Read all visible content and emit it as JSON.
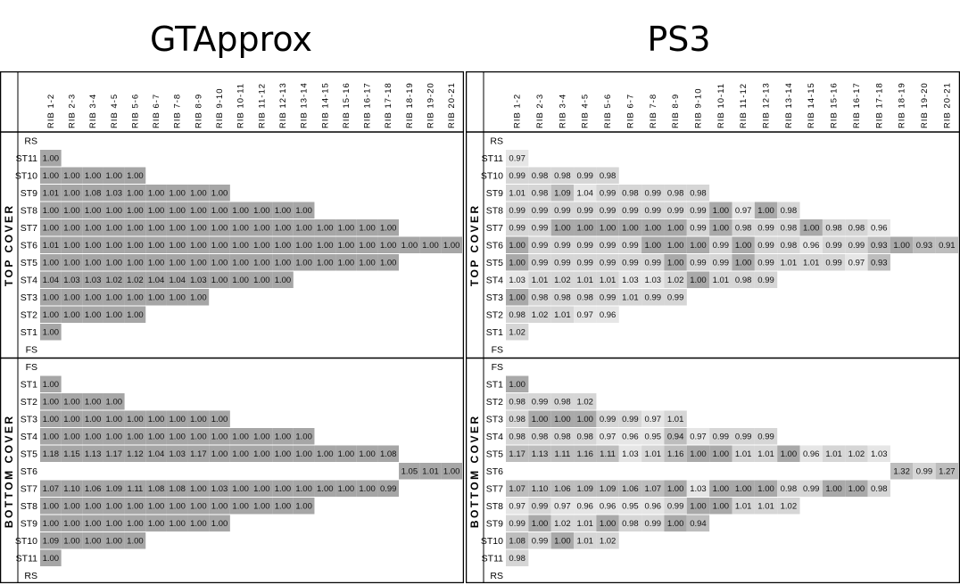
{
  "chart_data": [
    {
      "type": "heatmap",
      "title": "GTApprox",
      "x_labels": [
        "RIB 1-2",
        "RIB 2-3",
        "RIB 3-4",
        "RIB 4-5",
        "RIB 5-6",
        "RIB 6-7",
        "RIB 7-8",
        "RIB 8-9",
        "RIB 9-10",
        "RIB 10-11",
        "RIB 11-12",
        "RIB 12-13",
        "RIB 13-14",
        "RIB 14-15",
        "RIB 15-16",
        "RIB 16-17",
        "RIB 17-18",
        "RIB 18-19",
        "RIB 19-20",
        "RIB 20-21"
      ],
      "groups": [
        {
          "label": "TOP COVER",
          "rows": [
            {
              "label": "RS",
              "values": []
            },
            {
              "label": "ST11",
              "values": [
                "1.00"
              ]
            },
            {
              "label": "ST10",
              "values": [
                "1.00",
                "1.00",
                "1.00",
                "1.00",
                "1.00"
              ]
            },
            {
              "label": "ST9",
              "values": [
                "1.01",
                "1.00",
                "1.08",
                "1.03",
                "1.00",
                "1.00",
                "1.00",
                "1.00",
                "1.00"
              ]
            },
            {
              "label": "ST8",
              "values": [
                "1.00",
                "1.00",
                "1.00",
                "1.00",
                "1.00",
                "1.00",
                "1.00",
                "1.00",
                "1.00",
                "1.00",
                "1.00",
                "1.00",
                "1.00"
              ]
            },
            {
              "label": "ST7",
              "values": [
                "1.00",
                "1.00",
                "1.00",
                "1.00",
                "1.00",
                "1.00",
                "1.00",
                "1.00",
                "1.00",
                "1.00",
                "1.00",
                "1.00",
                "1.00",
                "1.00",
                "1.00",
                "1.00",
                "1.00"
              ]
            },
            {
              "label": "ST6",
              "values": [
                "1.01",
                "1.00",
                "1.00",
                "1.00",
                "1.00",
                "1.00",
                "1.00",
                "1.00",
                "1.00",
                "1.00",
                "1.00",
                "1.00",
                "1.00",
                "1.00",
                "1.00",
                "1.00",
                "1.00",
                "1.00",
                "1.00",
                "1.00"
              ]
            },
            {
              "label": "ST5",
              "values": [
                "1.00",
                "1.00",
                "1.00",
                "1.00",
                "1.00",
                "1.00",
                "1.00",
                "1.00",
                "1.00",
                "1.00",
                "1.00",
                "1.00",
                "1.00",
                "1.00",
                "1.00",
                "1.00",
                "1.00"
              ]
            },
            {
              "label": "ST4",
              "values": [
                "1.04",
                "1.03",
                "1.03",
                "1.02",
                "1.02",
                "1.04",
                "1.04",
                "1.03",
                "1.00",
                "1.00",
                "1.00",
                "1.00"
              ]
            },
            {
              "label": "ST3",
              "values": [
                "1.00",
                "1.00",
                "1.00",
                "1.00",
                "1.00",
                "1.00",
                "1.00",
                "1.00"
              ]
            },
            {
              "label": "ST2",
              "values": [
                "1.00",
                "1.00",
                "1.00",
                "1.00",
                "1.00"
              ]
            },
            {
              "label": "ST1",
              "values": [
                "1.00"
              ]
            },
            {
              "label": "FS",
              "values": []
            }
          ]
        },
        {
          "label": "BOTTOM COVER",
          "rows": [
            {
              "label": "FS",
              "values": []
            },
            {
              "label": "ST1",
              "values": [
                "1.00"
              ]
            },
            {
              "label": "ST2",
              "values": [
                "1.00",
                "1.00",
                "1.00",
                "1.00"
              ]
            },
            {
              "label": "ST3",
              "values": [
                "1.00",
                "1.00",
                "1.00",
                "1.00",
                "1.00",
                "1.00",
                "1.00",
                "1.00",
                "1.00"
              ]
            },
            {
              "label": "ST4",
              "values": [
                "1.00",
                "1.00",
                "1.00",
                "1.00",
                "1.00",
                "1.00",
                "1.00",
                "1.00",
                "1.00",
                "1.00",
                "1.00",
                "1.00",
                "1.00"
              ]
            },
            {
              "label": "ST5",
              "values": [
                "1.18",
                "1.15",
                "1.13",
                "1.17",
                "1.12",
                "1.04",
                "1.03",
                "1.17",
                "1.00",
                "1.00",
                "1.00",
                "1.00",
                "1.00",
                "1.00",
                "1.00",
                "1.00",
                "1.08"
              ]
            },
            {
              "label": "ST6",
              "values": [
                "",
                "",
                "",
                "",
                "",
                "",
                "",
                "",
                "",
                "",
                "",
                "",
                "",
                "",
                "",
                "",
                "",
                "1.05",
                "1.01",
                "1.00"
              ]
            },
            {
              "label": "ST7",
              "values": [
                "1.07",
                "1.10",
                "1.06",
                "1.09",
                "1.11",
                "1.08",
                "1.08",
                "1.00",
                "1.03",
                "1.00",
                "1.00",
                "1.00",
                "1.00",
                "1.00",
                "1.00",
                "1.00",
                "0.99"
              ]
            },
            {
              "label": "ST8",
              "values": [
                "1.00",
                "1.00",
                "1.00",
                "1.00",
                "1.00",
                "1.00",
                "1.00",
                "1.00",
                "1.00",
                "1.00",
                "1.00",
                "1.00",
                "1.00"
              ]
            },
            {
              "label": "ST9",
              "values": [
                "1.00",
                "1.00",
                "1.00",
                "1.00",
                "1.00",
                "1.00",
                "1.00",
                "1.00",
                "1.00"
              ]
            },
            {
              "label": "ST10",
              "values": [
                "1.09",
                "1.00",
                "1.00",
                "1.00",
                "1.00"
              ]
            },
            {
              "label": "ST11",
              "values": [
                "1.00"
              ]
            },
            {
              "label": "RS",
              "values": []
            }
          ]
        }
      ]
    },
    {
      "type": "heatmap",
      "title": "PS3",
      "x_labels": [
        "RIB 1-2",
        "RIB 2-3",
        "RIB 3-4",
        "RIB 4-5",
        "RIB 5-6",
        "RIB 6-7",
        "RIB 7-8",
        "RIB 8-9",
        "RIB 9-10",
        "RIB 10-11",
        "RIB 11-12",
        "RIB 12-13",
        "RIB 13-14",
        "RIB 14-15",
        "RIB 15-16",
        "RIB 16-17",
        "RIB 17-18",
        "RIB 18-19",
        "RIB 19-20",
        "RIB 20-21"
      ],
      "groups": [
        {
          "label": "TOP COVER",
          "rows": [
            {
              "label": "RS",
              "values": []
            },
            {
              "label": "ST11",
              "values": [
                "0.97"
              ]
            },
            {
              "label": "ST10",
              "values": [
                "0.99",
                "0.98",
                "0.98",
                "0.99",
                "0.98"
              ]
            },
            {
              "label": "ST9",
              "values": [
                "1.01",
                "0.98",
                "1.09",
                "1.04",
                "0.99",
                "0.98",
                "0.99",
                "0.98",
                "0.98"
              ]
            },
            {
              "label": "ST8",
              "values": [
                "0.99",
                "0.99",
                "0.99",
                "0.99",
                "0.99",
                "0.99",
                "0.99",
                "0.99",
                "0.99",
                "1.00",
                "0.97",
                "1.00",
                "0.98"
              ]
            },
            {
              "label": "ST7",
              "values": [
                "0.99",
                "0.99",
                "1.00",
                "1.00",
                "1.00",
                "1.00",
                "1.00",
                "1.00",
                "0.99",
                "1.00",
                "0.98",
                "0.99",
                "0.98",
                "1.00",
                "0.98",
                "0.98",
                "0.96"
              ]
            },
            {
              "label": "ST6",
              "values": [
                "1.00",
                "0.99",
                "0.99",
                "0.99",
                "0.99",
                "0.99",
                "1.00",
                "1.00",
                "1.00",
                "0.99",
                "1.00",
                "0.99",
                "0.98",
                "0.96",
                "0.99",
                "0.99",
                "0.93",
                "1.00",
                "0.93",
                "0.91"
              ]
            },
            {
              "label": "ST5",
              "values": [
                "1.00",
                "0.99",
                "0.99",
                "0.99",
                "0.99",
                "0.99",
                "0.99",
                "1.00",
                "0.99",
                "0.99",
                "1.00",
                "0.99",
                "1.01",
                "1.01",
                "0.99",
                "0.97",
                "0.93"
              ]
            },
            {
              "label": "ST4",
              "values": [
                "1.03",
                "1.01",
                "1.02",
                "1.01",
                "1.01",
                "1.03",
                "1.03",
                "1.02",
                "1.00",
                "1.01",
                "0.98",
                "0.99"
              ]
            },
            {
              "label": "ST3",
              "values": [
                "1.00",
                "0.98",
                "0.98",
                "0.98",
                "0.99",
                "1.01",
                "0.99",
                "0.99"
              ]
            },
            {
              "label": "ST2",
              "values": [
                "0.98",
                "1.02",
                "1.01",
                "0.97",
                "0.96"
              ]
            },
            {
              "label": "ST1",
              "values": [
                "1.02"
              ]
            },
            {
              "label": "FS",
              "values": []
            }
          ]
        },
        {
          "label": "BOTTOM COVER",
          "rows": [
            {
              "label": "FS",
              "values": []
            },
            {
              "label": "ST1",
              "values": [
                "1.00"
              ]
            },
            {
              "label": "ST2",
              "values": [
                "0.98",
                "0.99",
                "0.98",
                "1.02"
              ]
            },
            {
              "label": "ST3",
              "values": [
                "0.98",
                "1.00",
                "1.00",
                "1.00",
                "0.99",
                "0.99",
                "0.97",
                "1.01"
              ]
            },
            {
              "label": "ST4",
              "values": [
                "0.98",
                "0.98",
                "0.98",
                "0.98",
                "0.97",
                "0.96",
                "0.95",
                "0.94",
                "0.97",
                "0.99",
                "0.99",
                "0.99"
              ]
            },
            {
              "label": "ST5",
              "values": [
                "1.17",
                "1.13",
                "1.11",
                "1.16",
                "1.11",
                "1.03",
                "1.01",
                "1.16",
                "1.00",
                "1.00",
                "1.01",
                "1.01",
                "1.00",
                "0.96",
                "1.01",
                "1.02",
                "1.03"
              ]
            },
            {
              "label": "ST6",
              "values": [
                "",
                "",
                "",
                "",
                "",
                "",
                "",
                "",
                "",
                "",
                "",
                "",
                "",
                "",
                "",
                "",
                "",
                "1.32",
                "0.99",
                "1.27"
              ]
            },
            {
              "label": "ST7",
              "values": [
                "1.07",
                "1.10",
                "1.06",
                "1.09",
                "1.09",
                "1.06",
                "1.07",
                "1.00",
                "1.03",
                "1.00",
                "1.00",
                "1.00",
                "0.98",
                "0.99",
                "1.00",
                "1.00",
                "0.98"
              ]
            },
            {
              "label": "ST8",
              "values": [
                "0.97",
                "0.99",
                "0.97",
                "0.96",
                "0.96",
                "0.95",
                "0.96",
                "0.99",
                "1.00",
                "1.00",
                "1.01",
                "1.01",
                "1.02"
              ]
            },
            {
              "label": "ST9",
              "values": [
                "0.99",
                "1.00",
                "1.02",
                "1.01",
                "1.00",
                "0.98",
                "0.99",
                "1.00",
                "0.94"
              ]
            },
            {
              "label": "ST10",
              "values": [
                "1.08",
                "0.99",
                "1.00",
                "1.01",
                "1.02"
              ]
            },
            {
              "label": "ST11",
              "values": [
                "0.98"
              ]
            },
            {
              "label": "RS",
              "values": []
            }
          ]
        }
      ]
    }
  ]
}
